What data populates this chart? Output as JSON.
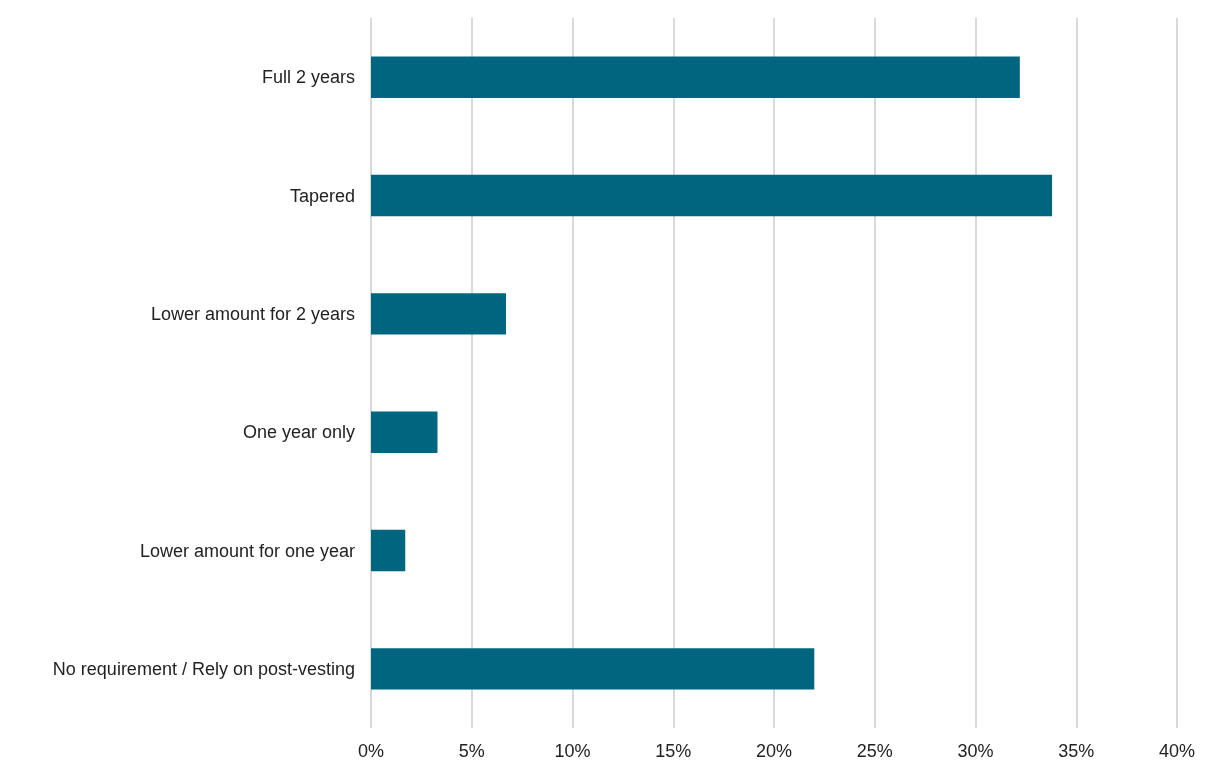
{
  "chart_data": {
    "type": "bar",
    "orientation": "horizontal",
    "categories": [
      "Full 2 years",
      "Tapered",
      "Lower amount for 2 years",
      "One year only",
      "Lower amount for one year",
      "No requirement / Rely on post-vesting"
    ],
    "values": [
      32.2,
      33.8,
      6.7,
      3.3,
      1.7,
      22.0
    ],
    "color": "#006680",
    "xlim": [
      0,
      40
    ],
    "xticks": [
      {
        "value": 0,
        "label": "0%"
      },
      {
        "value": 5,
        "label": "5%"
      },
      {
        "value": 10,
        "label": "10%"
      },
      {
        "value": 15,
        "label": "15%"
      },
      {
        "value": 20,
        "label": "20%"
      },
      {
        "value": 25,
        "label": "25%"
      },
      {
        "value": 30,
        "label": "30%"
      },
      {
        "value": 35,
        "label": "35%"
      },
      {
        "value": 40,
        "label": "40%"
      }
    ],
    "grid": "x"
  }
}
